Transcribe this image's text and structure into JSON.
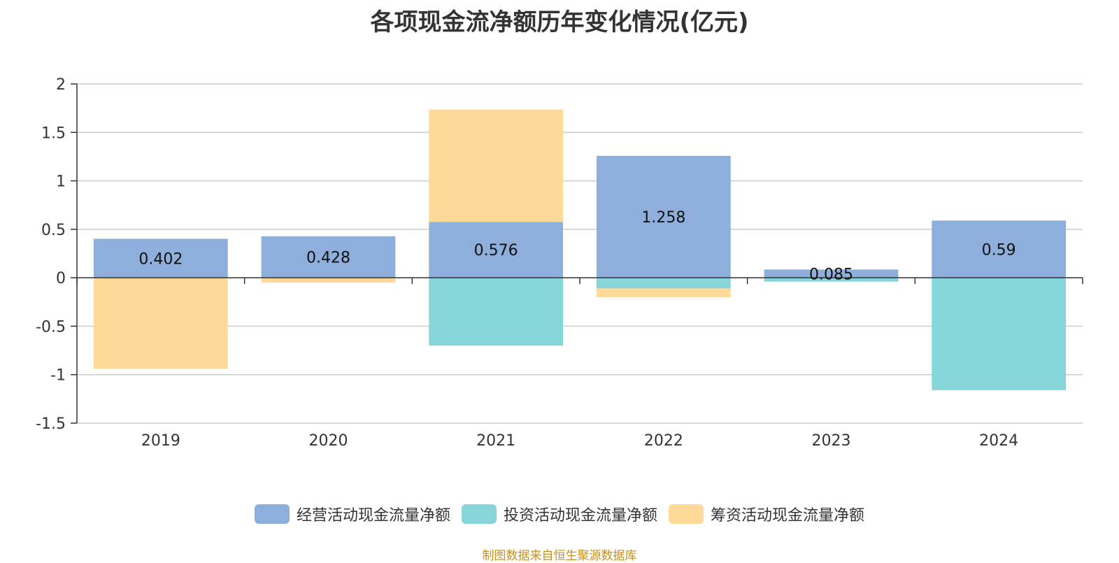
{
  "chart_data": {
    "type": "bar",
    "stacked": true,
    "title": "各项现金流净额历年变化情况(亿元)",
    "categories": [
      "2019",
      "2020",
      "2021",
      "2022",
      "2023",
      "2024"
    ],
    "series": [
      {
        "name": "经营活动现金流量净额",
        "color": "#8eaedb",
        "values": [
          0.402,
          0.428,
          0.576,
          1.258,
          0.085,
          0.59
        ],
        "labels": [
          "0.402",
          "0.428",
          "0.576",
          "1.258",
          "0.085",
          "0.59"
        ]
      },
      {
        "name": "投资活动现金流量净额",
        "color": "#86d5d8",
        "values": [
          0.0,
          0.0,
          -0.7,
          -0.11,
          -0.04,
          -1.16
        ]
      },
      {
        "name": "筹资活动现金流量净额",
        "color": "#fed998",
        "values": [
          -0.94,
          -0.05,
          1.16,
          -0.09,
          0.0,
          0.0
        ]
      }
    ],
    "ylim": [
      -1.5,
      2
    ],
    "yticks": [
      "2",
      "1.5",
      "1",
      "0.5",
      "0",
      "-0.5",
      "-1",
      "-1.5"
    ],
    "ytick_values": [
      2,
      1.5,
      1,
      0.5,
      0,
      -0.5,
      -1,
      -1.5
    ],
    "grid": true,
    "legend_position": "bottom"
  },
  "source_text": "制图数据来自恒生聚源数据库"
}
